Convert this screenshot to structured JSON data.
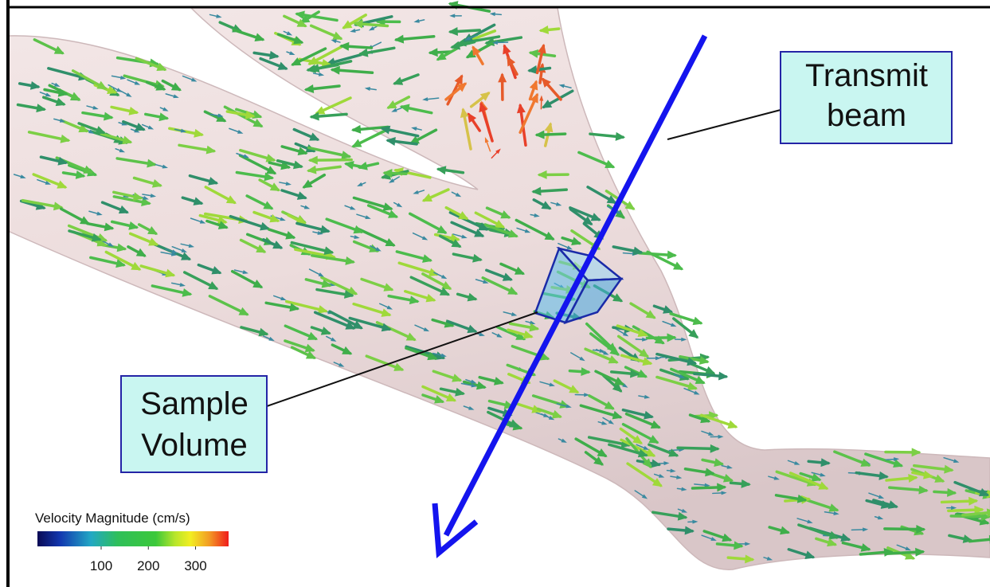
{
  "callouts": [
    {
      "lines": [
        "Transmit",
        "beam"
      ]
    },
    {
      "lines": [
        "Sample",
        "Volume"
      ]
    }
  ],
  "colorbar": {
    "title": "Velocity Magnitude (cm/s)",
    "range": [
      -35,
      370
    ],
    "ticks": [
      100,
      200,
      300
    ]
  }
}
